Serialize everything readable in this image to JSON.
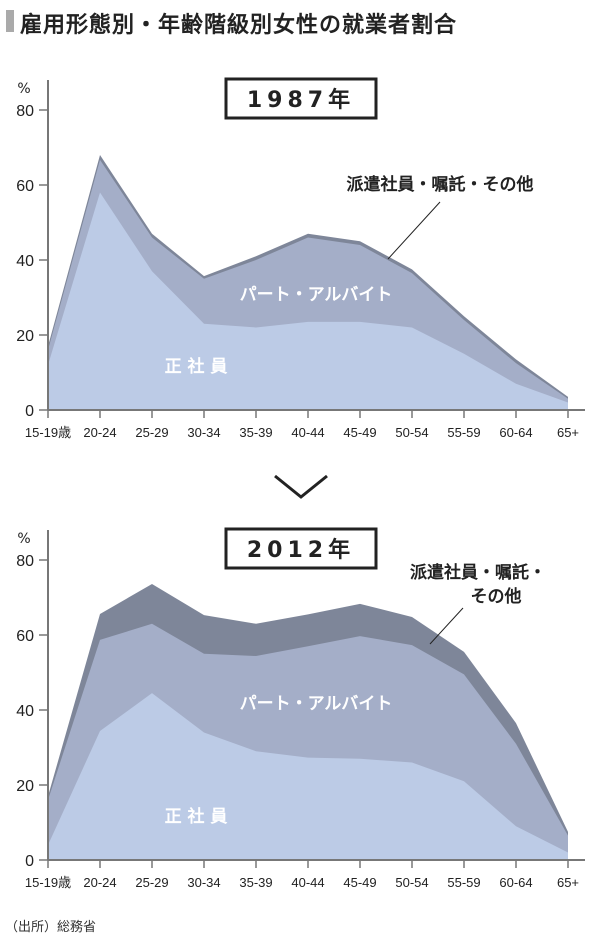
{
  "title": "雇用形態別・年齢階級別女性の就業者割合",
  "source": "（出所）総務省",
  "colors": {
    "regular": "#bccbe6",
    "part": "#a4aec8",
    "dispatch": "#7e8699",
    "axis": "#777777"
  },
  "chart_data": [
    {
      "type": "area",
      "title": "1987年",
      "ylabel": "%",
      "ylim": [
        0,
        80
      ],
      "yticks": [
        0,
        20,
        40,
        60,
        80
      ],
      "categories": [
        "15-19歳",
        "20-24",
        "25-29",
        "30-34",
        "35-39",
        "40-44",
        "45-49",
        "50-54",
        "55-59",
        "60-64",
        "65+"
      ],
      "series": [
        {
          "name": "正社員",
          "values": [
            12,
            58,
            37,
            23,
            22,
            23.5,
            23.5,
            22,
            15,
            7,
            2
          ]
        },
        {
          "name": "パート・アルバイト",
          "values": [
            4,
            8.7,
            9,
            12,
            18,
            22.5,
            20.5,
            14.5,
            9,
            5.5,
            1
          ]
        },
        {
          "name": "派遣社員・嘱託・その他",
          "values": [
            1,
            1.3,
            1,
            0.7,
            1,
            1,
            1,
            1,
            1,
            1,
            0.5
          ]
        }
      ],
      "labels": {
        "regular": "正 社 員",
        "part": "パート・アルバイト",
        "dispatch": "派遣社員・嘱託・その他"
      }
    },
    {
      "type": "area",
      "title": "2012年",
      "ylabel": "%",
      "ylim": [
        0,
        80
      ],
      "yticks": [
        0,
        20,
        40,
        60,
        80
      ],
      "categories": [
        "15-19歳",
        "20-24",
        "25-29",
        "30-34",
        "35-39",
        "40-44",
        "45-49",
        "50-54",
        "55-59",
        "60-64",
        "65+"
      ],
      "series": [
        {
          "name": "正社員",
          "values": [
            4,
            34.4,
            44.5,
            34,
            29,
            27.3,
            27,
            26,
            21,
            9,
            2
          ]
        },
        {
          "name": "パート・アルバイト",
          "values": [
            12,
            24.3,
            18.5,
            21,
            25.4,
            29.7,
            32.7,
            31.3,
            28.5,
            22,
            4.5
          ]
        },
        {
          "name": "派遣社員・嘱託・その他",
          "values": [
            1,
            6.9,
            10.6,
            10.3,
            8.6,
            8.5,
            8.6,
            7.5,
            6,
            5.5,
            1
          ]
        }
      ],
      "labels": {
        "regular": "正 社 員",
        "part": "パート・アルバイト",
        "dispatch1": "派遣社員・嘱託・",
        "dispatch2": "その他"
      }
    }
  ]
}
